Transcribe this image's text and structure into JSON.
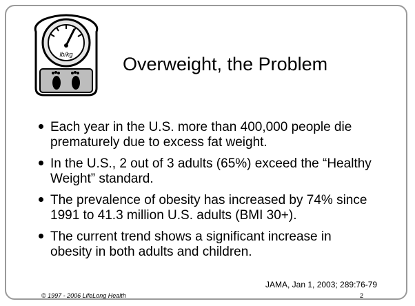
{
  "slide": {
    "title": "Overweight, the Problem",
    "bullets": [
      "Each year in the U.S. more than 400,000 people die prematurely due to excess fat weight.",
      "In the U.S., 2 out of 3 adults (65%) exceed the “Healthy Weight” standard.",
      "The prevalence of obesity has increased by 74% since 1991 to 41.3 million U.S. adults  (BMI 30+).",
      "The current trend shows a significant increase in obesity in both adults and children."
    ],
    "citation": "JAMA, Jan 1, 2003; 289:76-79",
    "footer": "© 1997 - 2006 LifeLong Health",
    "page_number": "2",
    "scale_label": "lb/kg"
  }
}
